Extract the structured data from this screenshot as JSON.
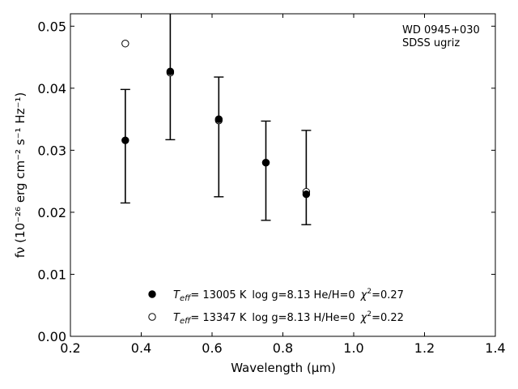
{
  "chart_data": {
    "type": "scatter",
    "title": "",
    "annotation_lines": [
      "WD 0945+030",
      "SDSS ugriz"
    ],
    "xlabel": "Wavelength (μm)",
    "ylabel": "fν (10⁻²⁶ erg cm⁻² s⁻¹ Hz⁻¹)",
    "xlim": [
      0.2,
      1.4
    ],
    "ylim": [
      0.0,
      0.052
    ],
    "x_ticks": [
      0.2,
      0.4,
      0.6,
      0.8,
      1.0,
      1.2,
      1.4
    ],
    "x_tick_labels": [
      "0.2",
      "0.4",
      "0.6",
      "0.8",
      "1.0",
      "1.2",
      "1.4"
    ],
    "y_ticks": [
      0.0,
      0.01,
      0.02,
      0.03,
      0.04,
      0.05
    ],
    "y_tick_labels": [
      "0.00",
      "0.01",
      "0.02",
      "0.03",
      "0.04",
      "0.05"
    ],
    "grid": false,
    "legend_position": "bottom-center",
    "observed": {
      "x": [
        0.355,
        0.482,
        0.619,
        0.752,
        0.866
      ],
      "y_low": [
        0.0215,
        0.0317,
        0.0225,
        0.0187,
        0.018
      ],
      "y_high": [
        0.0398,
        0.0535,
        0.0418,
        0.0347,
        0.0332
      ]
    },
    "series": [
      {
        "name": "T_eff= 13005 K  log g=8.13  He/H=0  χ²=0.27",
        "marker": "filled-circle",
        "x": [
          0.355,
          0.482,
          0.619,
          0.752,
          0.866
        ],
        "y": [
          0.0316,
          0.0427,
          0.035,
          0.028,
          0.0229
        ]
      },
      {
        "name": "T_eff= 13347 K  log g=8.13  H/He=0  χ²=0.22",
        "marker": "open-circle",
        "x": [
          0.355,
          0.482,
          0.619,
          0.752,
          0.866
        ],
        "y": [
          0.0472,
          0.0425,
          0.0348,
          0.028,
          0.0233
        ]
      }
    ],
    "legend": [
      {
        "marker": "filled-circle",
        "teff_value": "= 13005 K",
        "rest": "log g=8.13  He/H=0",
        "chi_value": "=0.27"
      },
      {
        "marker": "open-circle",
        "teff_value": "= 13347 K",
        "rest": "log g=8.13  H/He=0",
        "chi_value": "=0.22"
      }
    ],
    "colors": {
      "marker": "#000000",
      "errorbar": "#000000",
      "background": "#ffffff"
    }
  }
}
